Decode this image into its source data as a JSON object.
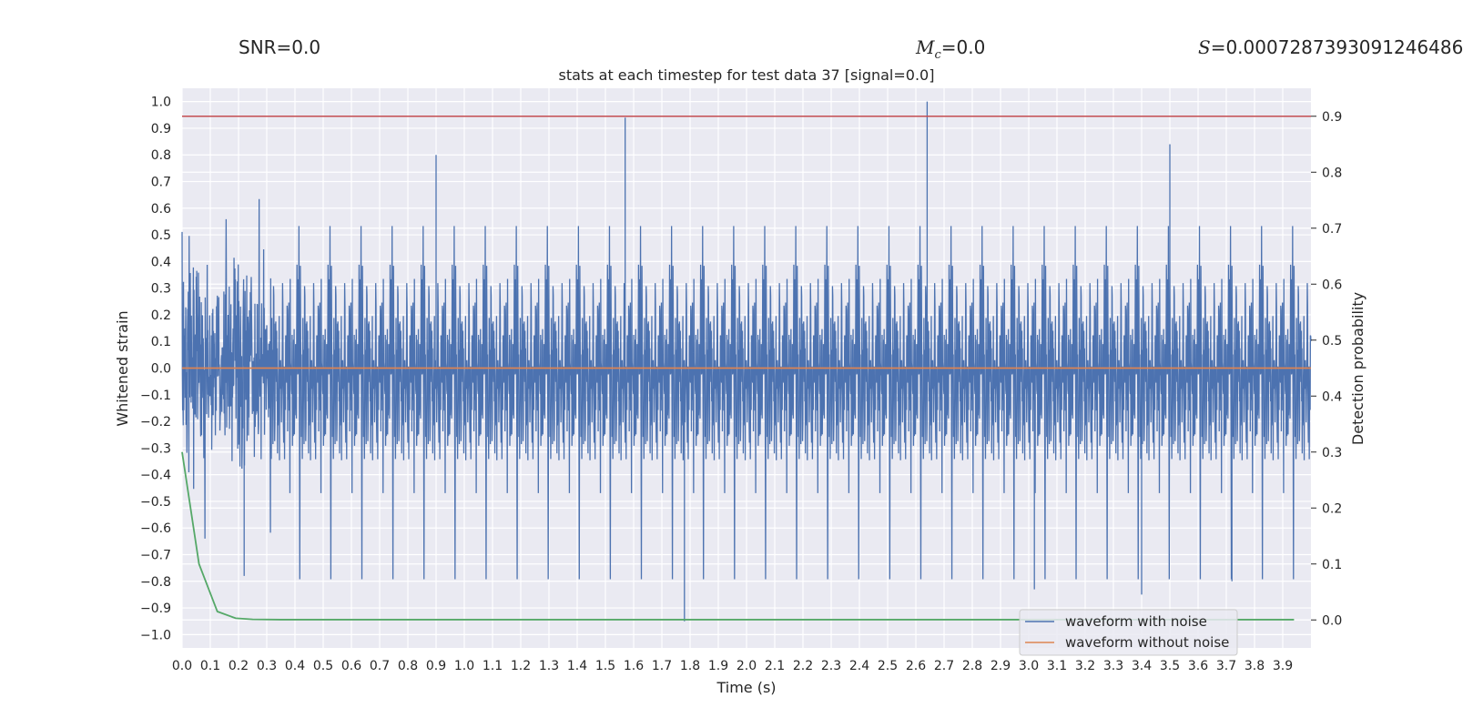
{
  "header": {
    "snr_label": "SNR=0.0",
    "mc_symbol": "M",
    "mc_sub": "c",
    "mc_value": "=0.0",
    "s_symbol": "S",
    "s_value": "=0.0007287393091246486"
  },
  "chart_data": {
    "type": "line",
    "title": "stats at each timestep for test data 37 [signal=0.0]",
    "xlabel": "Time (s)",
    "ylabel": "Whitened strain",
    "y2label": "Detection probability",
    "xlim": [
      0.0,
      4.0
    ],
    "ylim": [
      -1.05,
      1.05
    ],
    "y2lim": [
      -0.05,
      0.95
    ],
    "x_ticks": [
      "0.0",
      "0.1",
      "0.2",
      "0.3",
      "0.4",
      "0.5",
      "0.6",
      "0.7",
      "0.8",
      "0.9",
      "1.0",
      "1.1",
      "1.2",
      "1.3",
      "1.4",
      "1.5",
      "1.6",
      "1.7",
      "1.8",
      "1.9",
      "2.0",
      "2.1",
      "2.2",
      "2.3",
      "2.4",
      "2.5",
      "2.6",
      "2.7",
      "2.8",
      "2.9",
      "3.0",
      "3.1",
      "3.2",
      "3.3",
      "3.4",
      "3.5",
      "3.6",
      "3.7",
      "3.8",
      "3.9"
    ],
    "y_ticks": [
      "1.0",
      "0.9",
      "0.8",
      "0.7",
      "0.6",
      "0.5",
      "0.4",
      "0.3",
      "0.2",
      "0.1",
      "0.0",
      "−0.1",
      "−0.2",
      "−0.3",
      "−0.4",
      "−0.5",
      "−0.6",
      "−0.7",
      "−0.8",
      "−0.9",
      "−1.0"
    ],
    "y2_ticks": [
      "0.9",
      "0.8",
      "0.7",
      "0.6",
      "0.5",
      "0.4",
      "0.3",
      "0.2",
      "0.1",
      "0.0"
    ],
    "threshold": {
      "value": 0.9,
      "axis": "y2",
      "color": "#c44e52"
    },
    "series": [
      {
        "name": "waveform with noise",
        "color": "#4c72b0",
        "kind": "noise",
        "std": 0.2,
        "range": [
          -0.96,
          1.0
        ],
        "peaks": [
          {
            "x": 1.57,
            "y": 0.94
          },
          {
            "x": 2.64,
            "y": 1.0
          },
          {
            "x": 3.5,
            "y": 0.84
          },
          {
            "x": 1.78,
            "y": -0.95
          },
          {
            "x": 3.4,
            "y": -0.85
          },
          {
            "x": 0.22,
            "y": -0.78
          },
          {
            "x": 3.02,
            "y": -0.83
          },
          {
            "x": 3.72,
            "y": -0.8
          },
          {
            "x": 0.9,
            "y": 0.8
          }
        ]
      },
      {
        "name": "waveform without noise",
        "color": "#dd8452",
        "x": [
          0.0,
          4.0
        ],
        "y": [
          0.0,
          0.0
        ]
      },
      {
        "name": "detection probability",
        "axis": "y2",
        "color": "#55a868",
        "x": [
          0.0,
          0.06,
          0.125,
          0.19,
          0.25,
          0.35,
          0.5,
          1.0,
          2.0,
          3.0,
          3.94
        ],
        "y": [
          0.3,
          0.1,
          0.015,
          0.003,
          0.001,
          0.0005,
          0.0005,
          0.0005,
          0.0005,
          0.0005,
          0.0005
        ]
      }
    ],
    "legend": {
      "placement": "lower-right",
      "entries": [
        "waveform with noise",
        "waveform without noise"
      ]
    }
  }
}
